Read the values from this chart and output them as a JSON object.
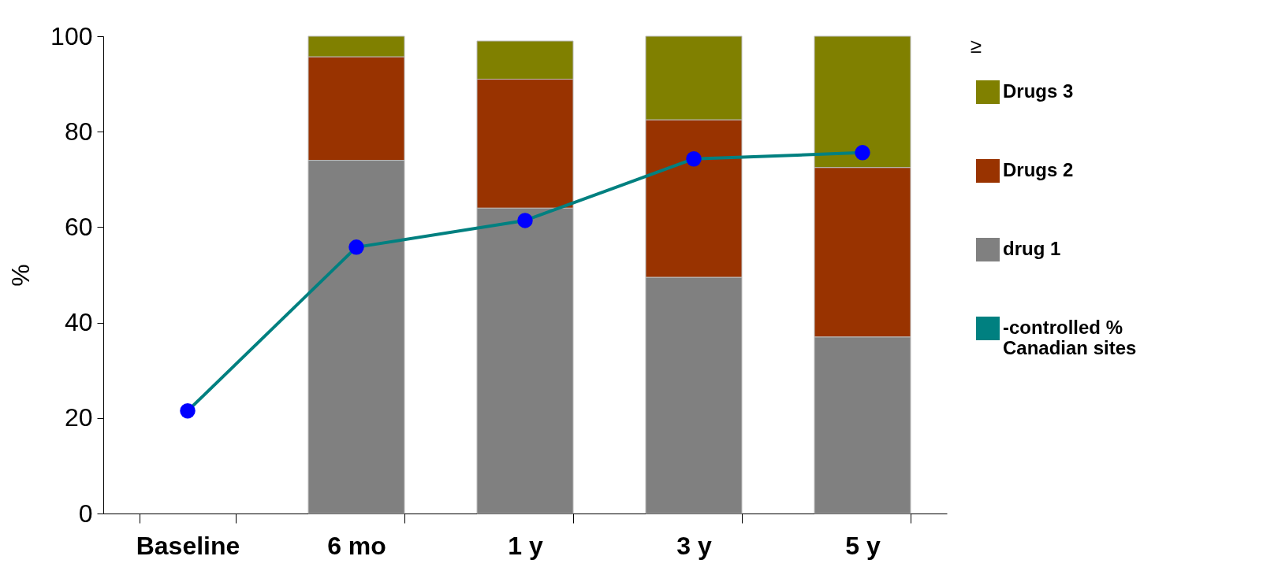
{
  "chart_data": {
    "type": "bar",
    "stacked": true,
    "ylabel": "%",
    "legend_title": "≥",
    "legend": "right",
    "categories": [
      "Baseline",
      "6 mo",
      "1 y",
      "3 y",
      "5 y"
    ],
    "series": [
      {
        "name": "drug 1",
        "color": "#808080",
        "values": [
          null,
          74,
          64,
          49.5,
          37
        ]
      },
      {
        "name": "Drugs 2",
        "color": "#993300",
        "values": [
          null,
          21.7,
          27,
          33,
          35.5
        ]
      },
      {
        "name": "Drugs 3",
        "color": "#808000",
        "values": [
          null,
          4.3,
          8,
          17.5,
          27.5
        ]
      },
      {
        "name": "-controlled %\nCanadian sites",
        "type": "line",
        "color": "#008080",
        "marker": "circle",
        "values": [
          21.5,
          55.8,
          61.4,
          74.3,
          75.6
        ]
      }
    ],
    "ylim": [
      0,
      100
    ],
    "yticks": [
      0,
      20,
      40,
      60,
      80,
      100
    ],
    "grid": false
  }
}
